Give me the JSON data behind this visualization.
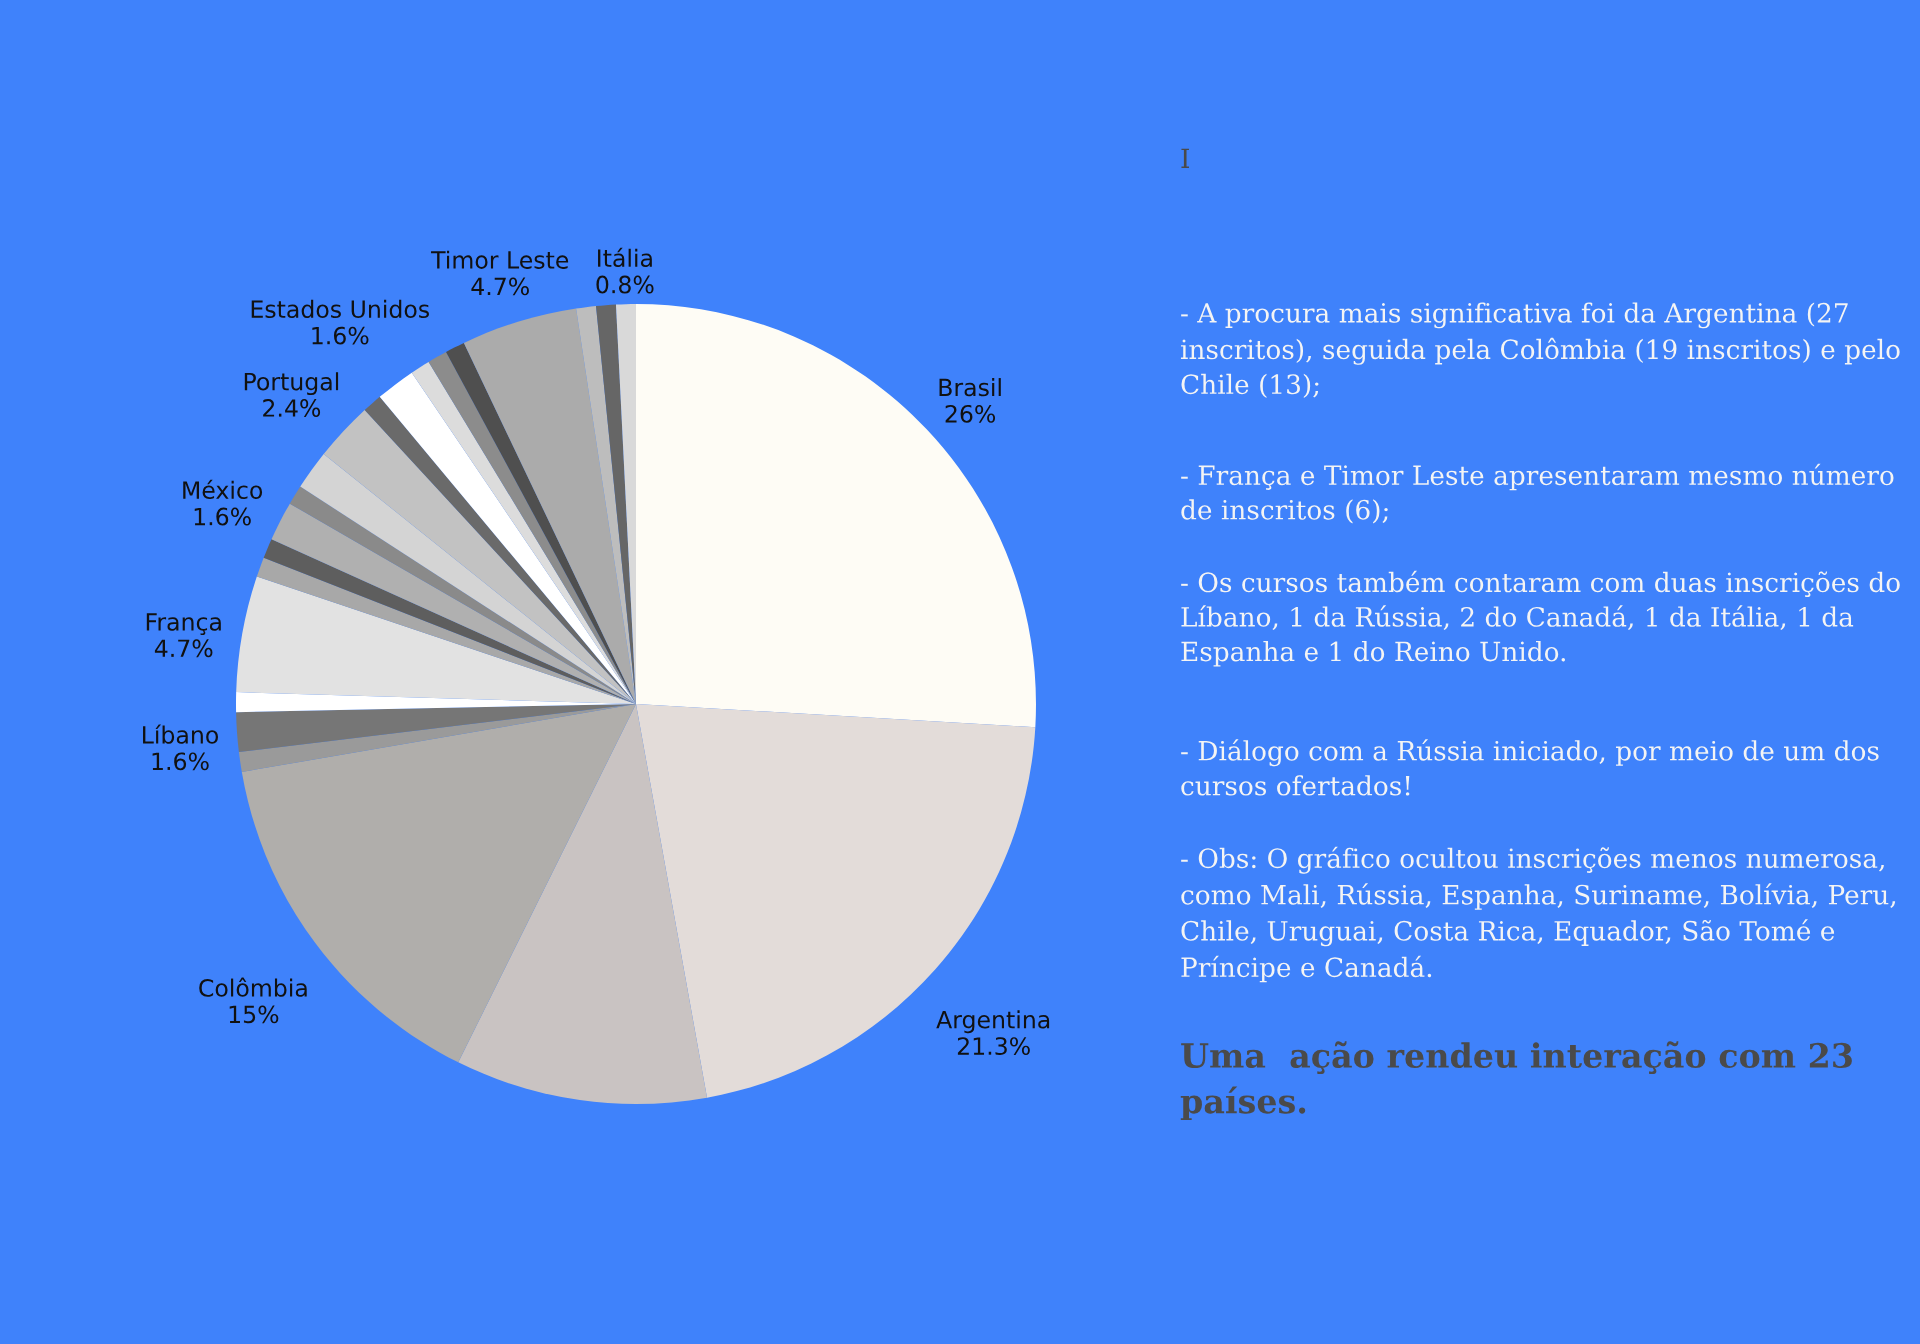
{
  "chart_data": {
    "type": "pie",
    "categories": [
      "Brasil",
      "Argentina",
      null,
      "Colômbia",
      null,
      "Líbano",
      null,
      "França",
      null,
      null,
      "México",
      null,
      null,
      "Portugal",
      null,
      "Estados Unidos",
      null,
      null,
      null,
      "Timor Leste",
      null,
      null,
      "Itália"
    ],
    "values": [
      26,
      21.3,
      10.2,
      15,
      0.8,
      1.6,
      0.8,
      4.7,
      0.8,
      0.8,
      1.6,
      0.8,
      1.6,
      2.4,
      0.8,
      1.6,
      0.8,
      0.8,
      0.8,
      4.7,
      0.8,
      0.8,
      0.8
    ],
    "value_labels": [
      "26%",
      "21.3%",
      null,
      "15%",
      null,
      "1.6%",
      null,
      "4.7%",
      null,
      null,
      "1.6%",
      null,
      null,
      "2.4%",
      null,
      "1.6%",
      null,
      null,
      null,
      "4.7%",
      null,
      null,
      "0.8%"
    ],
    "colors": [
      "#fefcf5",
      "#e3dcd9",
      "#c9c3c2",
      "#b0aeab",
      "#9a9a9a",
      "#767676",
      "#ffffff",
      "#e2e2e2",
      "#a8a8a8",
      "#5e5e5e",
      "#b0b0b0",
      "#8a8a8a",
      "#d4d4d4",
      "#c2c2c2",
      "#6a6a6a",
      "#ffffff",
      "#dcdcdc",
      "#8c8c8c",
      "#4f4f4f",
      "#ababab",
      "#bdbdbd",
      "#666666",
      "#d9d9d9"
    ],
    "annotations": [
      "I",
      "- A procura mais significativa foi da Argentina (27 inscritos), seguida pela Colômbia (19 inscritos) e pelo Chile (13);",
      "- França e Timor Leste apresentaram mesmo número de inscritos (6);",
      "- Os cursos também contaram com duas inscrições do Líbano, 1 da Rússia, 2 do Canadá, 1 da Itália, 1 da Espanha e 1 do Reino Unido.",
      "- Diálogo com a Rússia iniciado, por meio de um dos cursos ofertados!",
      "- Obs: O gráfico ocultou inscrições menos numerosa, como Mali, Rússia, Espanha, Suriname, Bolívia, Peru,  Chile, Uruguai, Costa Rica, Equador, São Tomé e Príncipe e Canadá.",
      "Uma  ação rendeu interação com 23 países."
    ]
  }
}
